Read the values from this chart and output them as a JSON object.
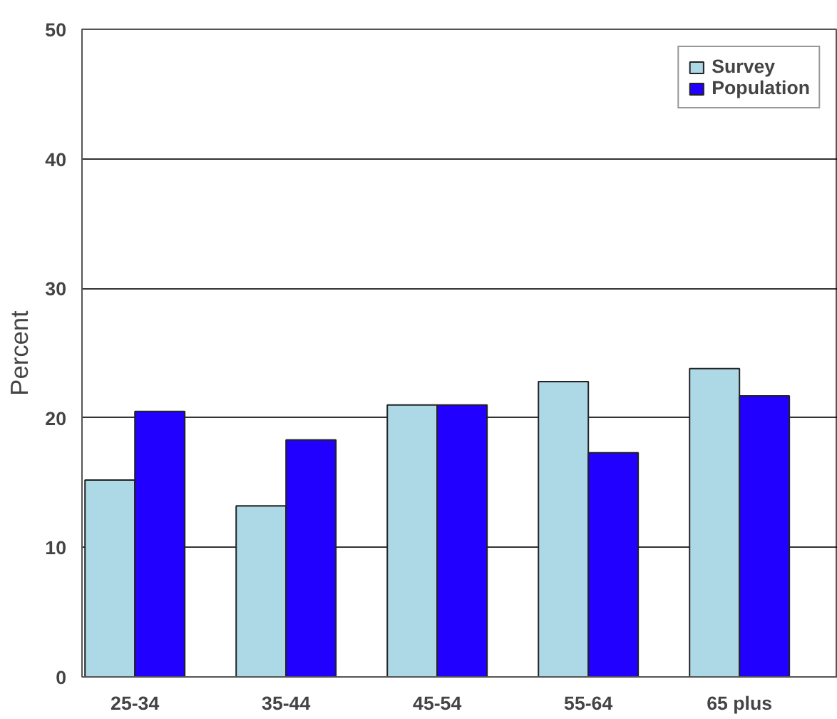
{
  "chart_data": {
    "type": "bar",
    "ylabel": "Percent",
    "categories": [
      "25-34",
      "35-44",
      "45-54",
      "55-64",
      "65 plus"
    ],
    "series": [
      {
        "name": "Survey",
        "color": "#add8e6",
        "values": [
          15.2,
          13.2,
          21.0,
          22.8,
          23.8
        ]
      },
      {
        "name": "Population",
        "color": "#2200ff",
        "values": [
          20.5,
          18.3,
          21.0,
          17.3,
          21.7
        ]
      }
    ],
    "ylim": [
      0,
      50
    ],
    "yticks": [
      0,
      10,
      20,
      30,
      40,
      50
    ],
    "grid": "y",
    "legend": "top right"
  }
}
